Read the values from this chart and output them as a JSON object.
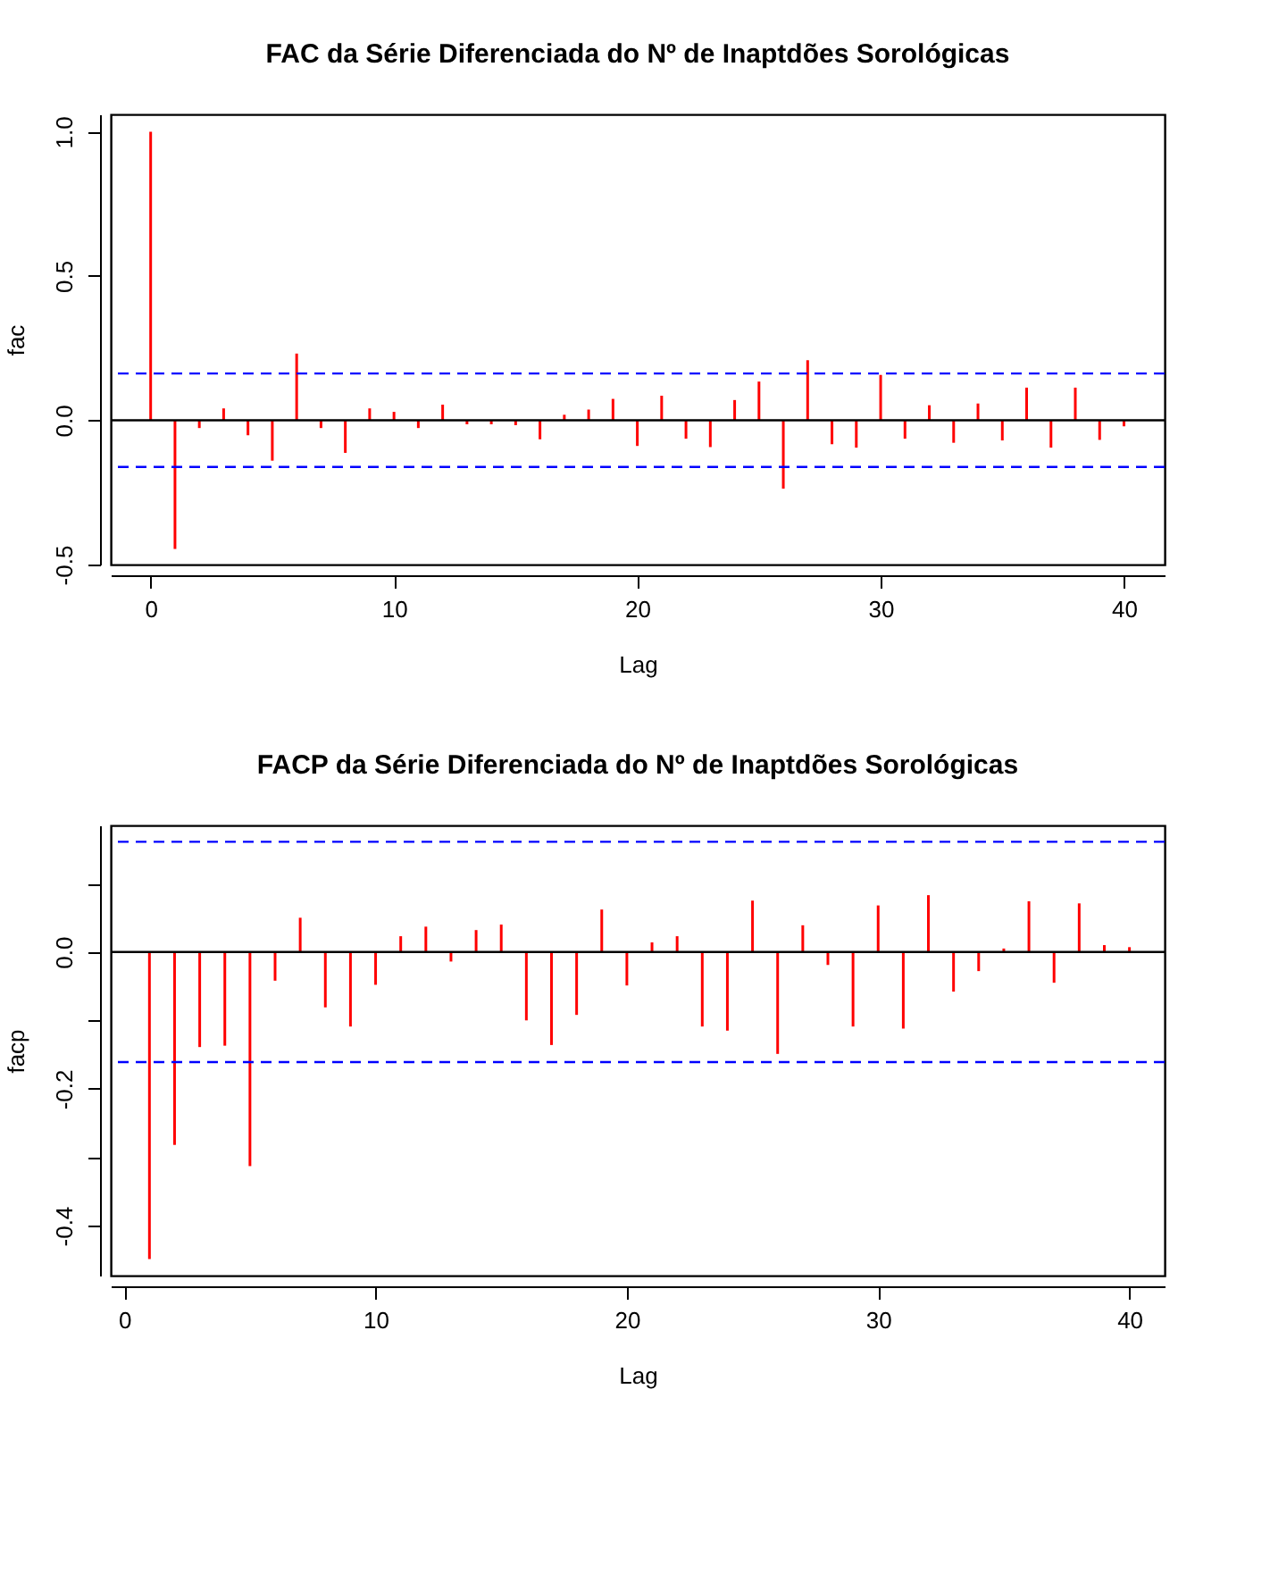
{
  "chart_data": [
    {
      "type": "bar",
      "title": "FAC da Série Diferenciada do Nº de Inaptdões Sorológicas",
      "xlabel": "Lag",
      "ylabel": "fac",
      "x": [
        0,
        1,
        2,
        3,
        4,
        5,
        6,
        7,
        8,
        9,
        10,
        11,
        12,
        13,
        14,
        15,
        16,
        17,
        18,
        19,
        20,
        21,
        22,
        23,
        24,
        25,
        26,
        27,
        28,
        29,
        30,
        31,
        32,
        33,
        34,
        35,
        36,
        37,
        38,
        39,
        40
      ],
      "series": [
        {
          "color": "#ff0000",
          "values": [
            1.0,
            -0.446,
            -0.027,
            0.041,
            -0.052,
            -0.14,
            0.231,
            -0.027,
            -0.113,
            0.041,
            0.029,
            -0.027,
            0.054,
            -0.014,
            -0.014,
            -0.017,
            -0.066,
            0.019,
            0.037,
            0.074,
            -0.089,
            0.085,
            -0.064,
            -0.093,
            0.07,
            0.134,
            -0.237,
            0.208,
            -0.083,
            -0.095,
            0.157,
            -0.064,
            0.052,
            -0.078,
            0.058,
            -0.07,
            0.113,
            -0.095,
            0.113,
            -0.068,
            -0.021
          ]
        }
      ],
      "xlim": [
        -1.64,
        41.67
      ],
      "ylim": [
        -0.5,
        1.06
      ],
      "xticks": [
        0,
        10,
        20,
        30,
        40
      ],
      "yticks": [
        {
          "value": -0.5,
          "label": "-0.5"
        },
        {
          "value": 0,
          "label": "0.0"
        },
        {
          "value": 0.5,
          "label": "0.5"
        },
        {
          "value": 1,
          "label": "1.0"
        }
      ],
      "grid": false,
      "ref_lines": [
        {
          "axis": "y",
          "value": 0,
          "color": "#000000",
          "line_style": "solid"
        },
        {
          "axis": "y",
          "value": 0.162,
          "color": "#0000ff",
          "line_style": "dashed"
        },
        {
          "axis": "y",
          "value": -0.162,
          "color": "#0000ff",
          "line_style": "dashed"
        }
      ]
    },
    {
      "type": "bar",
      "title": "FACP da Série Diferenciada do Nº de Inaptdões Sorológicas",
      "xlabel": "Lag",
      "ylabel": "facp",
      "x": [
        1,
        2,
        3,
        4,
        5,
        6,
        7,
        8,
        9,
        10,
        11,
        12,
        13,
        14,
        15,
        16,
        17,
        18,
        19,
        20,
        21,
        22,
        23,
        24,
        25,
        26,
        27,
        28,
        29,
        30,
        31,
        32,
        33,
        34,
        35,
        36,
        37,
        38,
        39,
        40
      ],
      "series": [
        {
          "color": "#ff0000",
          "values": [
            -0.449,
            -0.282,
            -0.139,
            -0.137,
            -0.313,
            -0.042,
            0.05,
            -0.081,
            -0.109,
            -0.048,
            0.023,
            0.037,
            -0.014,
            0.032,
            0.04,
            -0.1,
            -0.136,
            -0.092,
            0.062,
            -0.049,
            0.014,
            0.023,
            -0.109,
            -0.115,
            0.075,
            -0.149,
            0.039,
            -0.019,
            -0.109,
            0.068,
            -0.112,
            0.083,
            -0.058,
            -0.028,
            0.005,
            0.074,
            -0.045,
            0.071,
            0.01,
            0.007
          ]
        }
      ],
      "xlim": [
        -0.54,
        41.4
      ],
      "ylim": [
        -0.473,
        0.185
      ],
      "xticks": [
        0,
        10,
        20,
        30,
        40
      ],
      "yticks": [
        {
          "value": -0.4,
          "label": "-0.4"
        },
        {
          "value": -0.3,
          "label": null
        },
        {
          "value": -0.2,
          "label": "-0.2"
        },
        {
          "value": -0.1,
          "label": null
        },
        {
          "value": 0,
          "label": "0.0"
        },
        {
          "value": 0.1,
          "label": null
        }
      ],
      "grid": false,
      "ref_lines": [
        {
          "axis": "y",
          "value": 0,
          "color": "#000000",
          "line_style": "solid"
        },
        {
          "axis": "y",
          "value": 0.161,
          "color": "#0000ff",
          "line_style": "dashed"
        },
        {
          "axis": "y",
          "value": -0.161,
          "color": "#0000ff",
          "line_style": "dashed"
        }
      ]
    }
  ]
}
